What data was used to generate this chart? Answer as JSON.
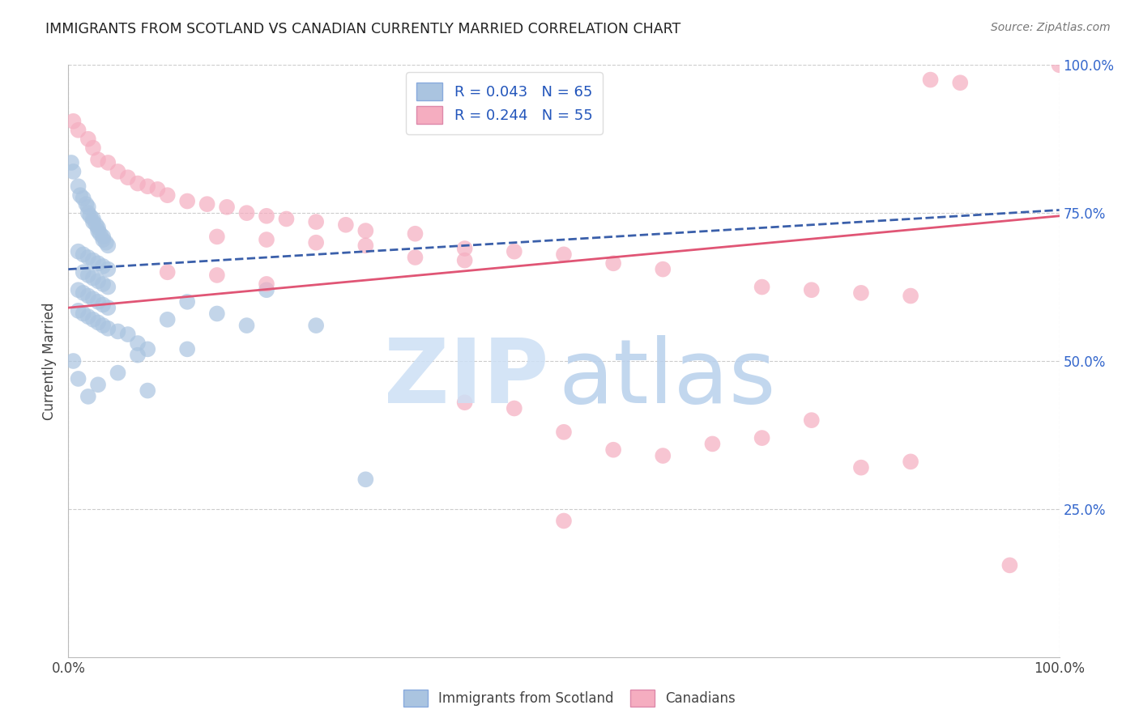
{
  "title": "IMMIGRANTS FROM SCOTLAND VS CANADIAN CURRENTLY MARRIED CORRELATION CHART",
  "source": "Source: ZipAtlas.com",
  "ylabel": "Currently Married",
  "legend_label1": "R = 0.043   N = 65",
  "legend_label2": "R = 0.244   N = 55",
  "blue_color": "#aac4e0",
  "pink_color": "#f5adc0",
  "blue_line_color": "#3a5faa",
  "pink_line_color": "#e05575",
  "legend_text_color": "#2255bb",
  "title_color": "#222222",
  "ytick_color": "#3366cc",
  "blue_line_start": 65.5,
  "blue_line_end": 75.5,
  "pink_line_start": 59.0,
  "pink_line_end": 74.5,
  "scatter_blue": [
    [
      0.3,
      83.5
    ],
    [
      0.5,
      82.0
    ],
    [
      1.0,
      79.5
    ],
    [
      1.2,
      78.0
    ],
    [
      1.5,
      77.5
    ],
    [
      1.8,
      76.5
    ],
    [
      2.0,
      76.0
    ],
    [
      2.0,
      75.0
    ],
    [
      2.2,
      74.5
    ],
    [
      2.5,
      74.0
    ],
    [
      2.5,
      73.5
    ],
    [
      2.8,
      73.0
    ],
    [
      3.0,
      72.5
    ],
    [
      3.0,
      72.0
    ],
    [
      3.2,
      71.5
    ],
    [
      3.5,
      71.0
    ],
    [
      3.5,
      70.5
    ],
    [
      3.8,
      70.0
    ],
    [
      4.0,
      69.5
    ],
    [
      1.0,
      68.5
    ],
    [
      1.5,
      68.0
    ],
    [
      2.0,
      67.5
    ],
    [
      2.5,
      67.0
    ],
    [
      3.0,
      66.5
    ],
    [
      3.5,
      66.0
    ],
    [
      4.0,
      65.5
    ],
    [
      1.5,
      65.0
    ],
    [
      2.0,
      64.5
    ],
    [
      2.5,
      64.0
    ],
    [
      3.0,
      63.5
    ],
    [
      3.5,
      63.0
    ],
    [
      4.0,
      62.5
    ],
    [
      1.0,
      62.0
    ],
    [
      1.5,
      61.5
    ],
    [
      2.0,
      61.0
    ],
    [
      2.5,
      60.5
    ],
    [
      3.0,
      60.0
    ],
    [
      3.5,
      59.5
    ],
    [
      4.0,
      59.0
    ],
    [
      1.0,
      58.5
    ],
    [
      1.5,
      58.0
    ],
    [
      2.0,
      57.5
    ],
    [
      2.5,
      57.0
    ],
    [
      3.0,
      56.5
    ],
    [
      3.5,
      56.0
    ],
    [
      4.0,
      55.5
    ],
    [
      5.0,
      55.0
    ],
    [
      6.0,
      54.5
    ],
    [
      7.0,
      53.0
    ],
    [
      8.0,
      52.0
    ],
    [
      10.0,
      57.0
    ],
    [
      12.0,
      60.0
    ],
    [
      15.0,
      58.0
    ],
    [
      18.0,
      56.0
    ],
    [
      20.0,
      62.0
    ],
    [
      5.0,
      48.0
    ],
    [
      7.0,
      51.0
    ],
    [
      0.5,
      50.0
    ],
    [
      1.0,
      47.0
    ],
    [
      3.0,
      46.0
    ],
    [
      8.0,
      45.0
    ],
    [
      12.0,
      52.0
    ],
    [
      25.0,
      56.0
    ],
    [
      30.0,
      30.0
    ],
    [
      2.0,
      44.0
    ]
  ],
  "scatter_pink": [
    [
      0.5,
      90.5
    ],
    [
      1.0,
      89.0
    ],
    [
      2.0,
      87.5
    ],
    [
      2.5,
      86.0
    ],
    [
      3.0,
      84.0
    ],
    [
      4.0,
      83.5
    ],
    [
      5.0,
      82.0
    ],
    [
      6.0,
      81.0
    ],
    [
      7.0,
      80.0
    ],
    [
      8.0,
      79.5
    ],
    [
      9.0,
      79.0
    ],
    [
      10.0,
      78.0
    ],
    [
      12.0,
      77.0
    ],
    [
      14.0,
      76.5
    ],
    [
      16.0,
      76.0
    ],
    [
      18.0,
      75.0
    ],
    [
      20.0,
      74.5
    ],
    [
      22.0,
      74.0
    ],
    [
      25.0,
      73.5
    ],
    [
      28.0,
      73.0
    ],
    [
      30.0,
      72.0
    ],
    [
      35.0,
      71.5
    ],
    [
      15.0,
      71.0
    ],
    [
      20.0,
      70.5
    ],
    [
      25.0,
      70.0
    ],
    [
      30.0,
      69.5
    ],
    [
      40.0,
      69.0
    ],
    [
      45.0,
      68.5
    ],
    [
      50.0,
      68.0
    ],
    [
      35.0,
      67.5
    ],
    [
      40.0,
      67.0
    ],
    [
      55.0,
      66.5
    ],
    [
      60.0,
      65.5
    ],
    [
      10.0,
      65.0
    ],
    [
      15.0,
      64.5
    ],
    [
      20.0,
      63.0
    ],
    [
      70.0,
      62.5
    ],
    [
      75.0,
      62.0
    ],
    [
      80.0,
      61.5
    ],
    [
      85.0,
      61.0
    ],
    [
      40.0,
      43.0
    ],
    [
      45.0,
      42.0
    ],
    [
      50.0,
      38.0
    ],
    [
      55.0,
      35.0
    ],
    [
      60.0,
      34.0
    ],
    [
      65.0,
      36.0
    ],
    [
      70.0,
      37.0
    ],
    [
      75.0,
      40.0
    ],
    [
      80.0,
      32.0
    ],
    [
      85.0,
      33.0
    ],
    [
      87.0,
      97.5
    ],
    [
      90.0,
      97.0
    ],
    [
      100.0,
      100.0
    ],
    [
      95.0,
      15.5
    ],
    [
      50.0,
      23.0
    ]
  ],
  "xmin": 0,
  "xmax": 100,
  "ymin": 0,
  "ymax": 100,
  "yticks": [
    25.0,
    50.0,
    75.0,
    100.0
  ],
  "ytick_labels": [
    "25.0%",
    "50.0%",
    "75.0%",
    "100.0%"
  ]
}
